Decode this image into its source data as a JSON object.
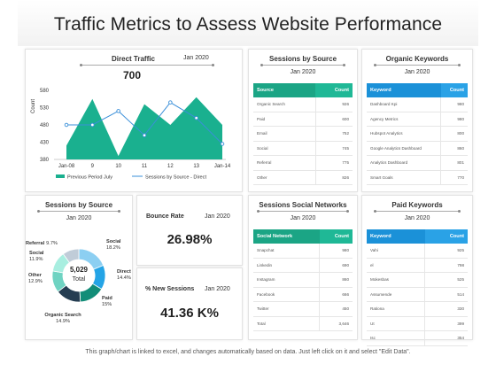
{
  "page": {
    "title": "Traffic Metrics to Assess Website Performance",
    "footer": "This graph/chart is linked to excel, and changes automatically based on data. Just left click on it and select \"Edit Data\"."
  },
  "direct_traffic": {
    "title": "Direct Traffic",
    "date": "Jan 2020",
    "value": "700",
    "ylabel": "Count",
    "legend_area": "Previous Period July",
    "legend_line": "Sessions by Source - Direct",
    "colors": {
      "area": "#1ab08f",
      "line": "#3a8fd9"
    },
    "chart_data": {
      "type": "area",
      "categories": [
        "Jan-08",
        "9",
        "10",
        "11",
        "12",
        "13",
        "Jan-14"
      ],
      "yticks": [
        380,
        430,
        480,
        530,
        580
      ],
      "ylim": [
        380,
        580
      ],
      "series": [
        {
          "name": "Previous Period July",
          "values": [
            420,
            555,
            390,
            540,
            480,
            560,
            480
          ]
        },
        {
          "name": "Sessions by Source - Direct",
          "values": [
            480,
            480,
            520,
            450,
            545,
            500,
            425
          ]
        }
      ]
    }
  },
  "sessions_source_table": {
    "title": "Sessions by Source",
    "date": "Jan 2020",
    "headers": [
      "Source",
      "Count"
    ],
    "rows": [
      [
        "Organic Search",
        "926"
      ],
      [
        "Paid",
        "600"
      ],
      [
        "Email",
        "752"
      ],
      [
        "Social",
        "745"
      ],
      [
        "Referral",
        "775"
      ],
      [
        "Other",
        "826"
      ]
    ]
  },
  "organic_keywords": {
    "title": "Organic Keywords",
    "date": "Jan 2020",
    "headers": [
      "Keyword",
      "Count"
    ],
    "rows": [
      [
        "Dashboard Kpi",
        "980"
      ],
      [
        "Agency Metrics",
        "980"
      ],
      [
        "Hubspot Analytics",
        "800"
      ],
      [
        "Google Analytics Dashboard",
        "860"
      ],
      [
        "Analytics Dashboard",
        "801"
      ],
      [
        "Smart Goals",
        "770"
      ]
    ]
  },
  "sessions_donut": {
    "title": "Sessions by Source",
    "date": "Jan 2020",
    "center_value": "5,029",
    "center_label": "Total",
    "chart_data": {
      "type": "pie",
      "slices": [
        {
          "name": "Social",
          "value": 18.2,
          "label": "18.2%",
          "color": "#8ccff2"
        },
        {
          "name": "Direct",
          "value": 14.4,
          "label": "14.4%",
          "color": "#24a4e6"
        },
        {
          "name": "Paid",
          "value": 15.0,
          "label": "15%",
          "color": "#128d78"
        },
        {
          "name": "Organic Search",
          "value": 14.9,
          "label": "14.9%",
          "color": "#253d52"
        },
        {
          "name": "Other",
          "value": 12.9,
          "label": "12.9%",
          "color": "#6fd3c2"
        },
        {
          "name": "Social",
          "value": 11.9,
          "label": "11.9%",
          "color": "#a8eee0"
        },
        {
          "name": "Referral",
          "value": 9.7,
          "label": "9.7%",
          "color": "#c0ccd8"
        }
      ]
    }
  },
  "bounce_rate": {
    "label": "Bounce Rate",
    "date": "Jan 2020",
    "value": "26.98%"
  },
  "new_sessions": {
    "label": "% New Sessions",
    "date": "Jan 2020",
    "value": "41.36 K%"
  },
  "social_networks": {
    "title": "Sessions Social Networks",
    "date": "Jan 2020",
    "headers": [
      "Social Network",
      "Count"
    ],
    "rows": [
      [
        "Snapchat",
        "980"
      ],
      [
        "Linkedin",
        "690"
      ],
      [
        "Instagram",
        "860"
      ],
      [
        "Facebook",
        "666"
      ],
      [
        "Twitter",
        "450"
      ],
      [
        "Total",
        "3,646"
      ]
    ]
  },
  "paid_keywords": {
    "title": "Paid Keywords",
    "date": "Jan 2020",
    "headers": [
      "Keyword",
      "Count"
    ],
    "rows": [
      [
        "Vahi",
        "925"
      ],
      [
        "el",
        "798"
      ],
      [
        "Mokesbas",
        "525"
      ],
      [
        "Assumende",
        "514"
      ],
      [
        "Rationa",
        "330"
      ],
      [
        "Ut",
        "399"
      ],
      [
        "Isc",
        "354"
      ]
    ]
  }
}
